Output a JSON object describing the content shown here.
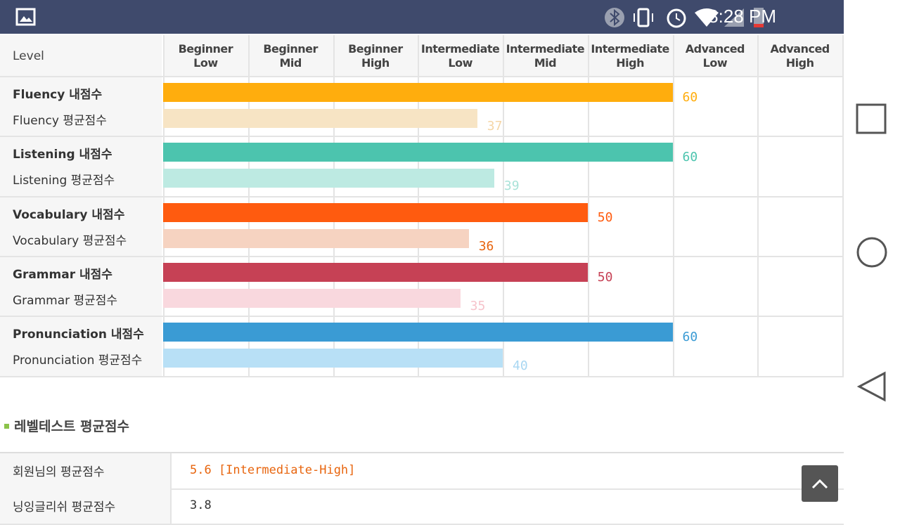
{
  "status_bar": {
    "time": "8:28 PM"
  },
  "chart_data": {
    "type": "bar",
    "orientation": "horizontal",
    "level_header": "Level",
    "levels": [
      "Beginner Low",
      "Beginner Mid",
      "Beginner High",
      "Intermediate Low",
      "Intermediate Mid",
      "Intermediate High",
      "Advanced Low",
      "Advanced High"
    ],
    "xlim": [
      0,
      80
    ],
    "series": [
      {
        "name": "Fluency 내점수",
        "color": "#ffad0d",
        "label_color": "#ffad0d",
        "value": 60
      },
      {
        "name": "Fluency 평균점수",
        "color": "#f7e4c4",
        "label_color": "#f5d6a6",
        "value": 37
      },
      {
        "name": "Listening 내점수",
        "color": "#4cc4ae",
        "label_color": "#4cc4ae",
        "value": 60
      },
      {
        "name": "Listening 평균점수",
        "color": "#bdeae2",
        "label_color": "#a8e2d8",
        "value": 39
      },
      {
        "name": "Vocabulary 내점수",
        "color": "#ff5b0f",
        "label_color": "#ff5b0f",
        "value": 50
      },
      {
        "name": "Vocabulary 평균점수",
        "color": "#f6d3c1",
        "label_color": "#e8640e",
        "value": 36
      },
      {
        "name": "Grammar 내점수",
        "color": "#c64155",
        "label_color": "#c64155",
        "value": 50
      },
      {
        "name": "Grammar 평균점수",
        "color": "#f9d8de",
        "label_color": "#f6c3cb",
        "value": 35
      },
      {
        "name": "Pronunciation 내점수",
        "color": "#3a9bd4",
        "label_color": "#3a9bd4",
        "value": 60
      },
      {
        "name": "Pronunciation 평균점수",
        "color": "#b8e0f6",
        "label_color": "#a8d7f2",
        "value": 40
      }
    ]
  },
  "summary": {
    "title": "레벨테스트 평균점수",
    "rows": [
      [
        "회원님의 평균점수",
        "5.6 [Intermediate-High]"
      ],
      [
        "닝잉글리쉬 평균점수",
        "3.8"
      ]
    ]
  }
}
